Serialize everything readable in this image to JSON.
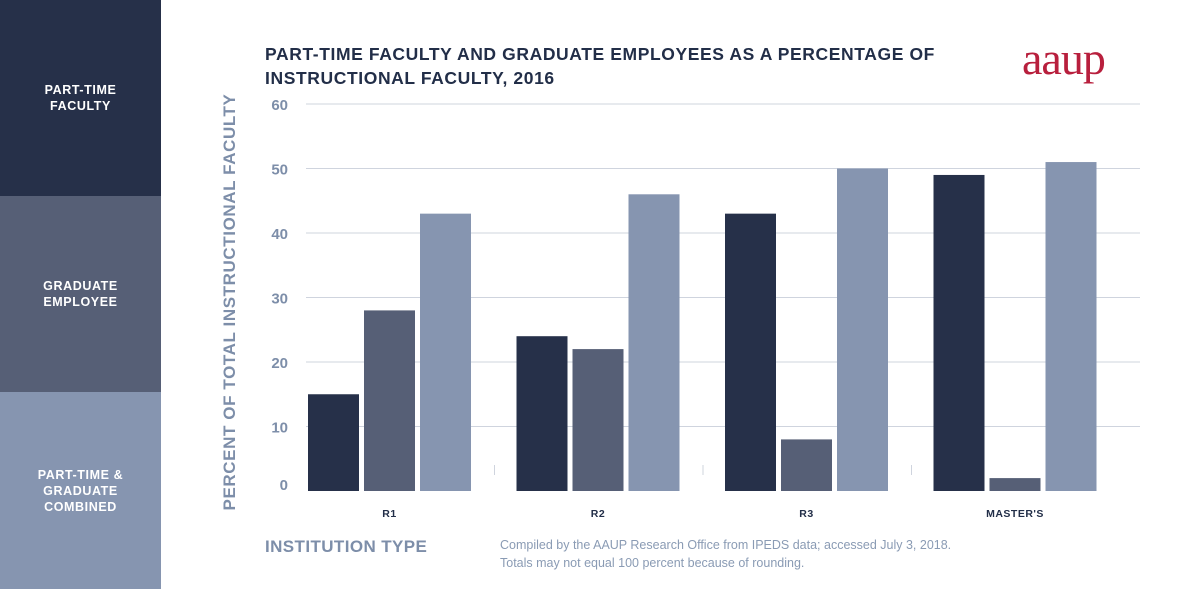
{
  "legend": [
    {
      "label": "PART-TIME FACULTY",
      "color": "#263049"
    },
    {
      "label": "GRADUATE EMPLOYEE",
      "color": "#565f76"
    },
    {
      "label": "PART-TIME & GRADUATE COMBINED",
      "color": "#8695b0"
    }
  ],
  "header": {
    "title": "PART-TIME FACULTY AND GRADUATE EMPLOYEES AS A PERCENTAGE OF INSTRUCTIONAL FACULTY, 2016",
    "logo": "aaup"
  },
  "footer": {
    "note_line1": "Compiled by the AAUP Research Office from IPEDS data; accessed July 3, 2018.",
    "note_line2": "Totals may not equal 100 percent because of rounding."
  },
  "colors": {
    "part_time": "#263049",
    "graduate": "#565f76",
    "combined": "#8695b0",
    "grid": "#cfd4de",
    "axis_text": "#7d8ea9",
    "title": "#222e48",
    "logo": "#b81f3d"
  },
  "chart_data": {
    "type": "bar",
    "title": "PART-TIME FACULTY AND GRADUATE EMPLOYEES AS A PERCENTAGE OF INSTRUCTIONAL FACULTY, 2016",
    "xlabel": "INSTITUTION TYPE",
    "ylabel": "PERCENT OF TOTAL INSTRUCTIONAL FACULTY",
    "categories": [
      "R1",
      "R2",
      "R3",
      "MASTER'S"
    ],
    "series": [
      {
        "name": "PART-TIME FACULTY",
        "values": [
          15,
          24,
          43,
          49
        ]
      },
      {
        "name": "GRADUATE EMPLOYEE",
        "values": [
          28,
          22,
          8,
          2
        ]
      },
      {
        "name": "PART-TIME & GRADUATE COMBINED",
        "values": [
          43,
          46,
          50,
          51
        ]
      }
    ],
    "ylim": [
      0,
      60
    ],
    "yticks": [
      0,
      10,
      20,
      30,
      40,
      50,
      60
    ],
    "grid": true,
    "legend_position": "left"
  }
}
